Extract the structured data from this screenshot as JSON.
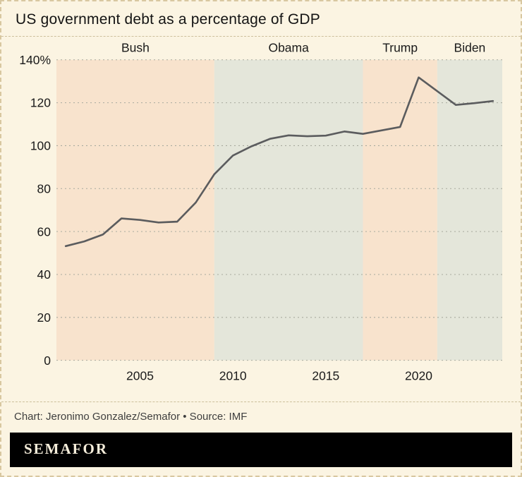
{
  "header": {
    "title": "US government debt as a percentage of GDP"
  },
  "footer": {
    "credits": "Chart: Jeronimo Gonzalez/Semafor • Source: IMF"
  },
  "logo": {
    "text": "SEMAFOR"
  },
  "colors": {
    "page_background": "#fbf4e2",
    "border_dashed": "#d8c7a0",
    "band_republican": "#f8e3cd",
    "band_democrat": "#e4e6da",
    "gridline": "#a8aa9e",
    "line": "#5b5c5e",
    "logo_bar": "#000000",
    "logo_text": "#f6eedb"
  },
  "chart_data": {
    "type": "line",
    "title": "US government debt as a percentage of GDP",
    "xlabel": "",
    "ylabel": "",
    "x": [
      2001,
      2002,
      2003,
      2004,
      2005,
      2006,
      2007,
      2008,
      2009,
      2010,
      2011,
      2012,
      2013,
      2014,
      2015,
      2016,
      2017,
      2018,
      2019,
      2020,
      2021,
      2022,
      2023,
      2024
    ],
    "values": [
      53.2,
      55.4,
      58.6,
      66.1,
      65.4,
      64.2,
      64.6,
      73.5,
      86.7,
      95.4,
      99.7,
      103.2,
      104.8,
      104.4,
      104.7,
      106.6,
      105.5,
      107.1,
      108.7,
      131.8,
      125.4,
      119.0,
      119.8,
      120.8
    ],
    "xlim": [
      2000.5,
      2024.5
    ],
    "ylim": [
      0,
      140
    ],
    "yticks": [
      0,
      20,
      40,
      60,
      80,
      100,
      120,
      140
    ],
    "ytick_labels": [
      "0",
      "20",
      "40",
      "60",
      "80",
      "100",
      "120",
      "140%"
    ],
    "xticks": [
      2005,
      2010,
      2015,
      2020
    ],
    "xtick_labels": [
      "2005",
      "2010",
      "2015",
      "2020"
    ],
    "grid": "dashed-horizontal",
    "legend": "none",
    "line_color": "#5b5c5e",
    "bands": [
      {
        "label": "Bush",
        "start": 2000.5,
        "end": 2009,
        "color": "#f8e3cd"
      },
      {
        "label": "Obama",
        "start": 2009,
        "end": 2017,
        "color": "#e4e6da"
      },
      {
        "label": "Trump",
        "start": 2017,
        "end": 2021,
        "color": "#f8e3cd"
      },
      {
        "label": "Biden",
        "start": 2021,
        "end": 2024.5,
        "color": "#e4e6da"
      }
    ]
  }
}
